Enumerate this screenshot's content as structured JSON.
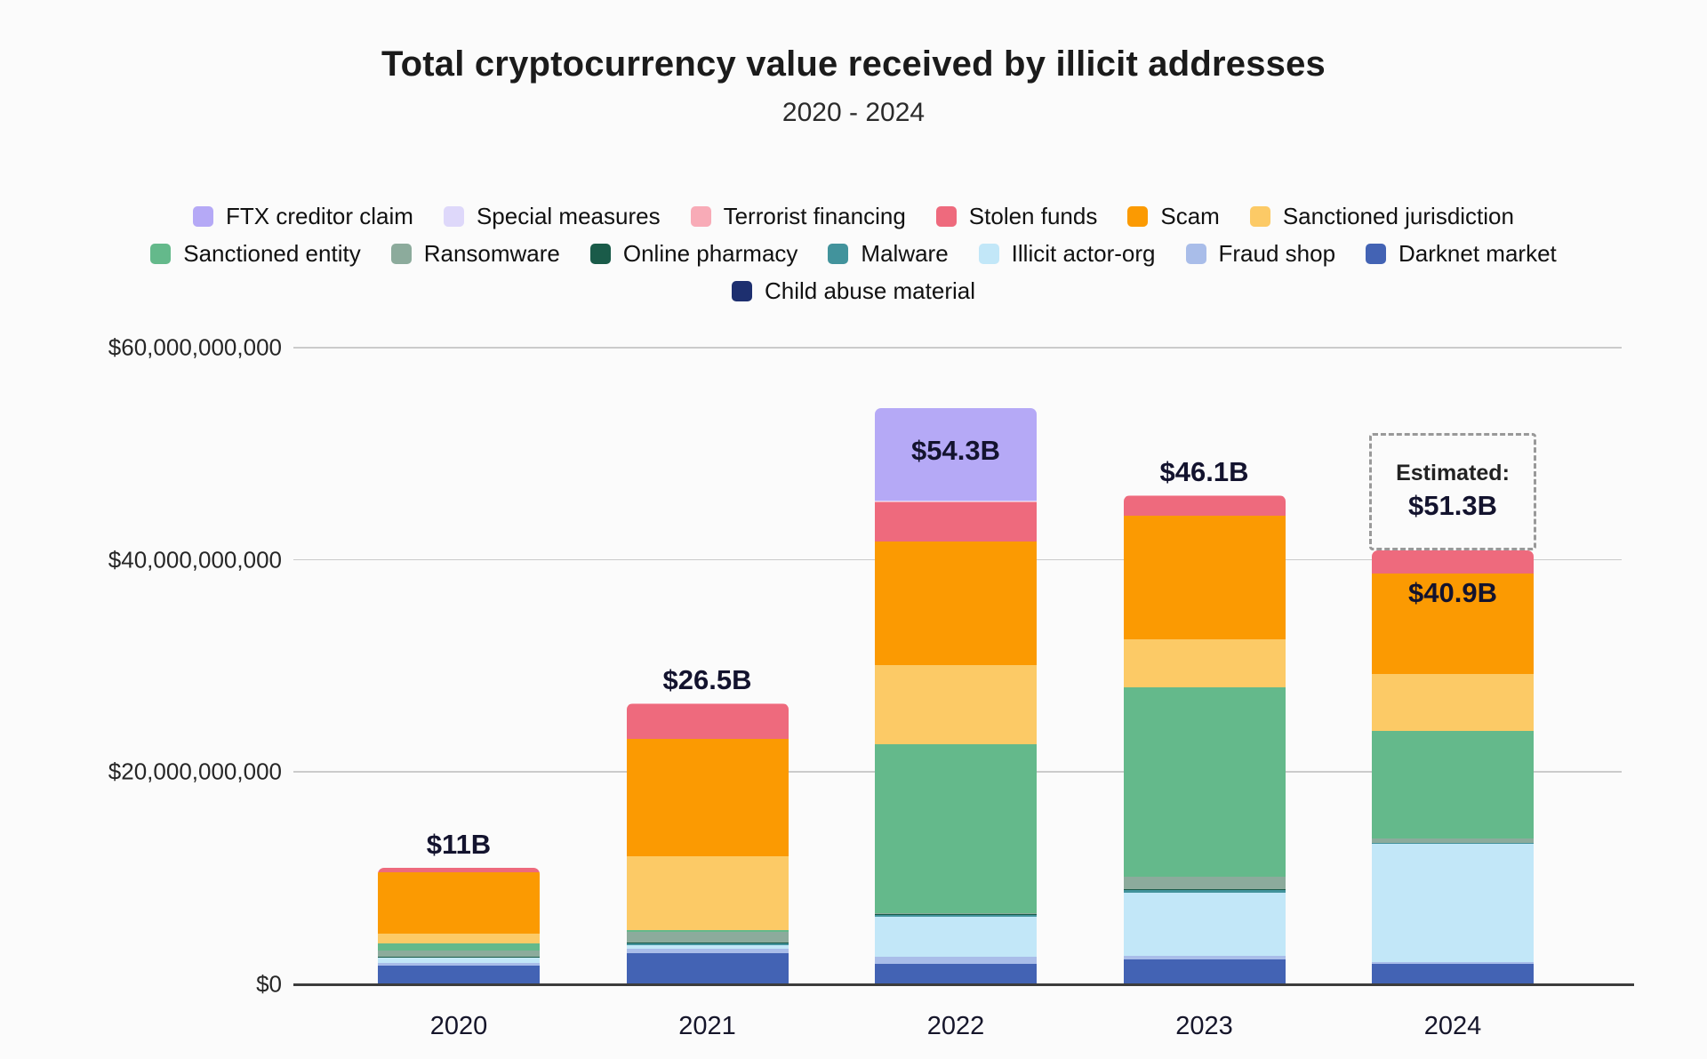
{
  "title": "Total cryptocurrency value received by illicit addresses",
  "subtitle": "2020 - 2024",
  "chart_data": {
    "type": "bar",
    "stacked": true,
    "categories": [
      "2020",
      "2021",
      "2022",
      "2023",
      "2024"
    ],
    "unit": "USD (billions)",
    "ylim": [
      0,
      60
    ],
    "grid": true,
    "y_ticks": [
      {
        "value": 0,
        "label": "$0"
      },
      {
        "value": 20,
        "label": "$20,000,000,000"
      },
      {
        "value": 40,
        "label": "$40,000,000,000"
      },
      {
        "value": 60,
        "label": "$60,000,000,000"
      }
    ],
    "series": [
      {
        "name": "Child abuse material",
        "color": "#1d2f6f",
        "values": [
          0.05,
          0.05,
          0.05,
          0.05,
          0.05
        ]
      },
      {
        "name": "Darknet market",
        "color": "#4363b4",
        "values": [
          1.7,
          2.9,
          1.9,
          2.3,
          1.9
        ]
      },
      {
        "name": "Fraud shop",
        "color": "#a9bde9",
        "values": [
          0.25,
          0.4,
          0.65,
          0.3,
          0.15
        ]
      },
      {
        "name": "Illicit actor-org",
        "color": "#c2e7f8",
        "values": [
          0.5,
          0.35,
          3.75,
          6.0,
          11.1
        ]
      },
      {
        "name": "Malware",
        "color": "#42939c",
        "values": [
          0.05,
          0.15,
          0.15,
          0.2,
          0.1
        ]
      },
      {
        "name": "Online pharmacy",
        "color": "#1a5b49",
        "values": [
          0.05,
          0.05,
          0.1,
          0.1,
          0.05
        ]
      },
      {
        "name": "Ransomware",
        "color": "#8cab9c",
        "values": [
          0.6,
          1.0,
          0.1,
          1.15,
          0.35
        ]
      },
      {
        "name": "Sanctioned entity",
        "color": "#64b98b",
        "values": [
          0.65,
          0.25,
          15.95,
          17.85,
          10.15
        ]
      },
      {
        "name": "Sanctioned jurisdiction",
        "color": "#fcca66",
        "values": [
          0.9,
          6.95,
          7.45,
          4.6,
          5.4
        ]
      },
      {
        "name": "Scam",
        "color": "#fb9a02",
        "values": [
          5.8,
          11.0,
          11.6,
          11.6,
          9.45
        ]
      },
      {
        "name": "Stolen funds",
        "color": "#ee6a7d",
        "values": [
          0.45,
          3.3,
          3.75,
          1.85,
          2.2
        ]
      },
      {
        "name": "Terrorist financing",
        "color": "#f8abb7",
        "values": [
          0,
          0.1,
          0.05,
          0.1,
          0
        ]
      },
      {
        "name": "Special measures",
        "color": "#ded8fa",
        "values": [
          0,
          0,
          0.05,
          0,
          0
        ]
      },
      {
        "name": "FTX creditor claim",
        "color": "#b5a9f6",
        "values": [
          0,
          0,
          8.75,
          0,
          0
        ]
      }
    ],
    "totals": [
      11.0,
      26.5,
      54.3,
      46.1,
      40.9
    ],
    "total_labels": [
      "$11B",
      "$26.5B",
      "$54.3B",
      "$46.1B",
      "$40.9B"
    ],
    "total_label_placement": [
      "above",
      "above",
      "inside",
      "above",
      "inside"
    ],
    "estimated": {
      "category": "2024",
      "caption": "Estimated:",
      "value": 51.3,
      "value_label": "$51.3B"
    },
    "legend_rows": [
      [
        "FTX creditor claim",
        "Special measures",
        "Terrorist financing",
        "Stolen funds",
        "Scam",
        "Sanctioned jurisdiction"
      ],
      [
        "Sanctioned entity",
        "Ransomware",
        "Online pharmacy",
        "Malware",
        "Illicit actor-org",
        "Fraud shop",
        "Darknet market"
      ],
      [
        "Child abuse material"
      ]
    ],
    "legend_position": "top"
  }
}
